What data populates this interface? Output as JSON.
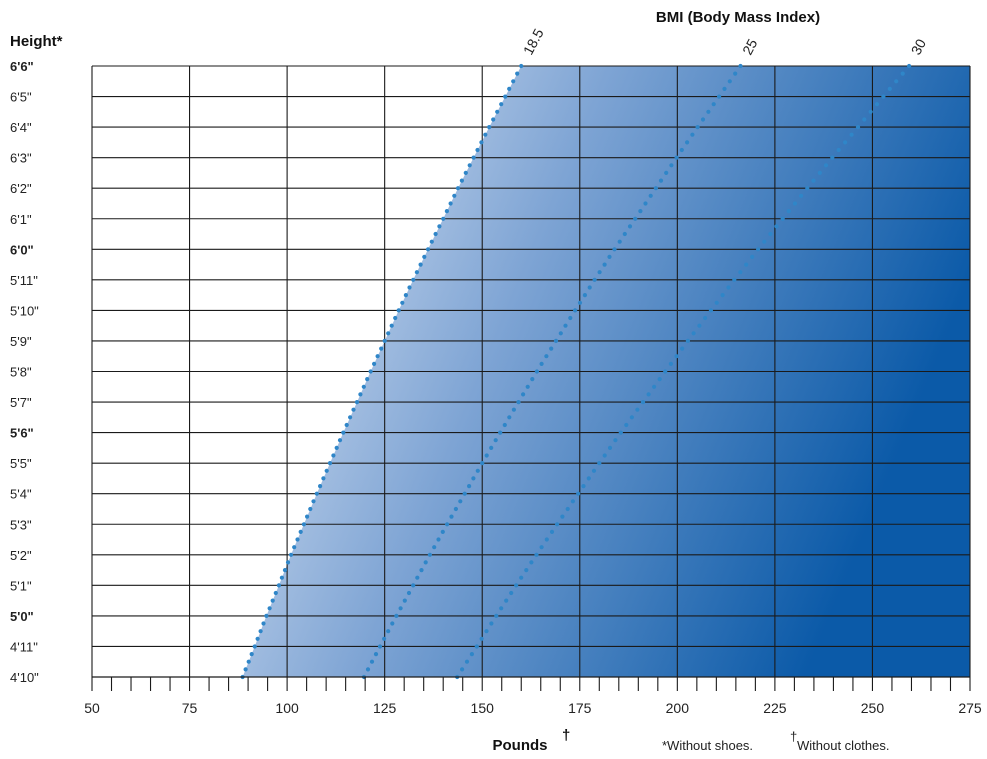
{
  "chart_data": {
    "type": "line",
    "title": "BMI (Body Mass Index)",
    "y_axis_title": "Height*",
    "x_axis_title": "Pounds",
    "x_axis_title_mark": "†",
    "footnote_height": "*Without shoes.",
    "footnote_weight_mark": "†",
    "footnote_weight": "Without clothes.",
    "x_ticks": [
      50,
      75,
      100,
      125,
      150,
      175,
      200,
      225,
      250,
      275
    ],
    "xlim": [
      50,
      275
    ],
    "x_minor_step": 5,
    "y_categories": [
      "4'10\"",
      "4'11\"",
      "5'0\"",
      "5'1\"",
      "5'2\"",
      "5'3\"",
      "5'4\"",
      "5'5\"",
      "5'6\"",
      "5'7\"",
      "5'8\"",
      "5'9\"",
      "5'10\"",
      "5'11\"",
      "6'0\"",
      "6'1\"",
      "6'2\"",
      "6'3\"",
      "6'4\"",
      "6'5\"",
      "6'6\""
    ],
    "y_heights_in": [
      58,
      59,
      60,
      61,
      62,
      63,
      64,
      65,
      66,
      67,
      68,
      69,
      70,
      71,
      72,
      73,
      74,
      75,
      76,
      77,
      78
    ],
    "y_bold_labels": [
      "5'0\"",
      "5'6\"",
      "6'0\"",
      "6'6\""
    ],
    "grid": true,
    "series": [
      {
        "name": "18.5",
        "bmi": 18.5,
        "x": [
          88.6,
          91.7,
          94.7,
          97.9,
          101.0,
          104.3,
          107.6,
          111.0,
          114.4,
          117.9,
          121.4,
          125.0,
          128.6,
          132.3,
          136.1,
          140.0,
          143.8,
          147.8,
          151.8,
          155.9,
          160.0
        ],
        "y": [
          "4'10\"",
          "4'11\"",
          "5'0\"",
          "5'1\"",
          "5'2\"",
          "5'3\"",
          "5'4\"",
          "5'5\"",
          "5'6\"",
          "5'7\"",
          "5'8\"",
          "5'9\"",
          "5'10\"",
          "5'11\"",
          "6'0\"",
          "6'1\"",
          "6'2\"",
          "6'3\"",
          "6'4\"",
          "6'5\"",
          "6'6\""
        ]
      },
      {
        "name": "25",
        "bmi": 25,
        "x": [
          119.7,
          123.8,
          128.0,
          132.3,
          136.6,
          141.0,
          145.5,
          150.0,
          154.6,
          159.3,
          164.0,
          168.9,
          173.8,
          178.8,
          183.9,
          189.2,
          194.5,
          199.8,
          205.2,
          210.7,
          216.2
        ],
        "y": [
          "4'10\"",
          "4'11\"",
          "5'0\"",
          "5'1\"",
          "5'2\"",
          "5'3\"",
          "5'4\"",
          "5'5\"",
          "5'6\"",
          "5'7\"",
          "5'8\"",
          "5'9\"",
          "5'10\"",
          "5'11\"",
          "6'0\"",
          "6'1\"",
          "6'2\"",
          "6'3\"",
          "6'4\"",
          "6'5\"",
          "6'6\""
        ]
      },
      {
        "name": "30",
        "bmi": 30,
        "x": [
          143.6,
          148.6,
          153.6,
          158.7,
          163.9,
          169.2,
          174.6,
          180.0,
          185.5,
          191.2,
          196.9,
          202.7,
          208.6,
          214.6,
          220.7,
          227.0,
          233.3,
          239.7,
          246.3,
          252.8,
          259.4
        ],
        "y": [
          "4'10\"",
          "4'11\"",
          "5'0\"",
          "5'1\"",
          "5'2\"",
          "5'3\"",
          "5'4\"",
          "5'5\"",
          "5'6\"",
          "5'7\"",
          "5'8\"",
          "5'9\"",
          "5'10\"",
          "5'11\"",
          "6'0\"",
          "6'1\"",
          "6'2\"",
          "6'3\"",
          "6'4\"",
          "6'5\"",
          "6'6\""
        ]
      }
    ],
    "colors": {
      "gradient_light": "#e8eef8",
      "gradient_dark": "#0b5aa8",
      "grid": "#1a1a1a",
      "dots": "#2f86c8",
      "text": "#222222"
    }
  }
}
